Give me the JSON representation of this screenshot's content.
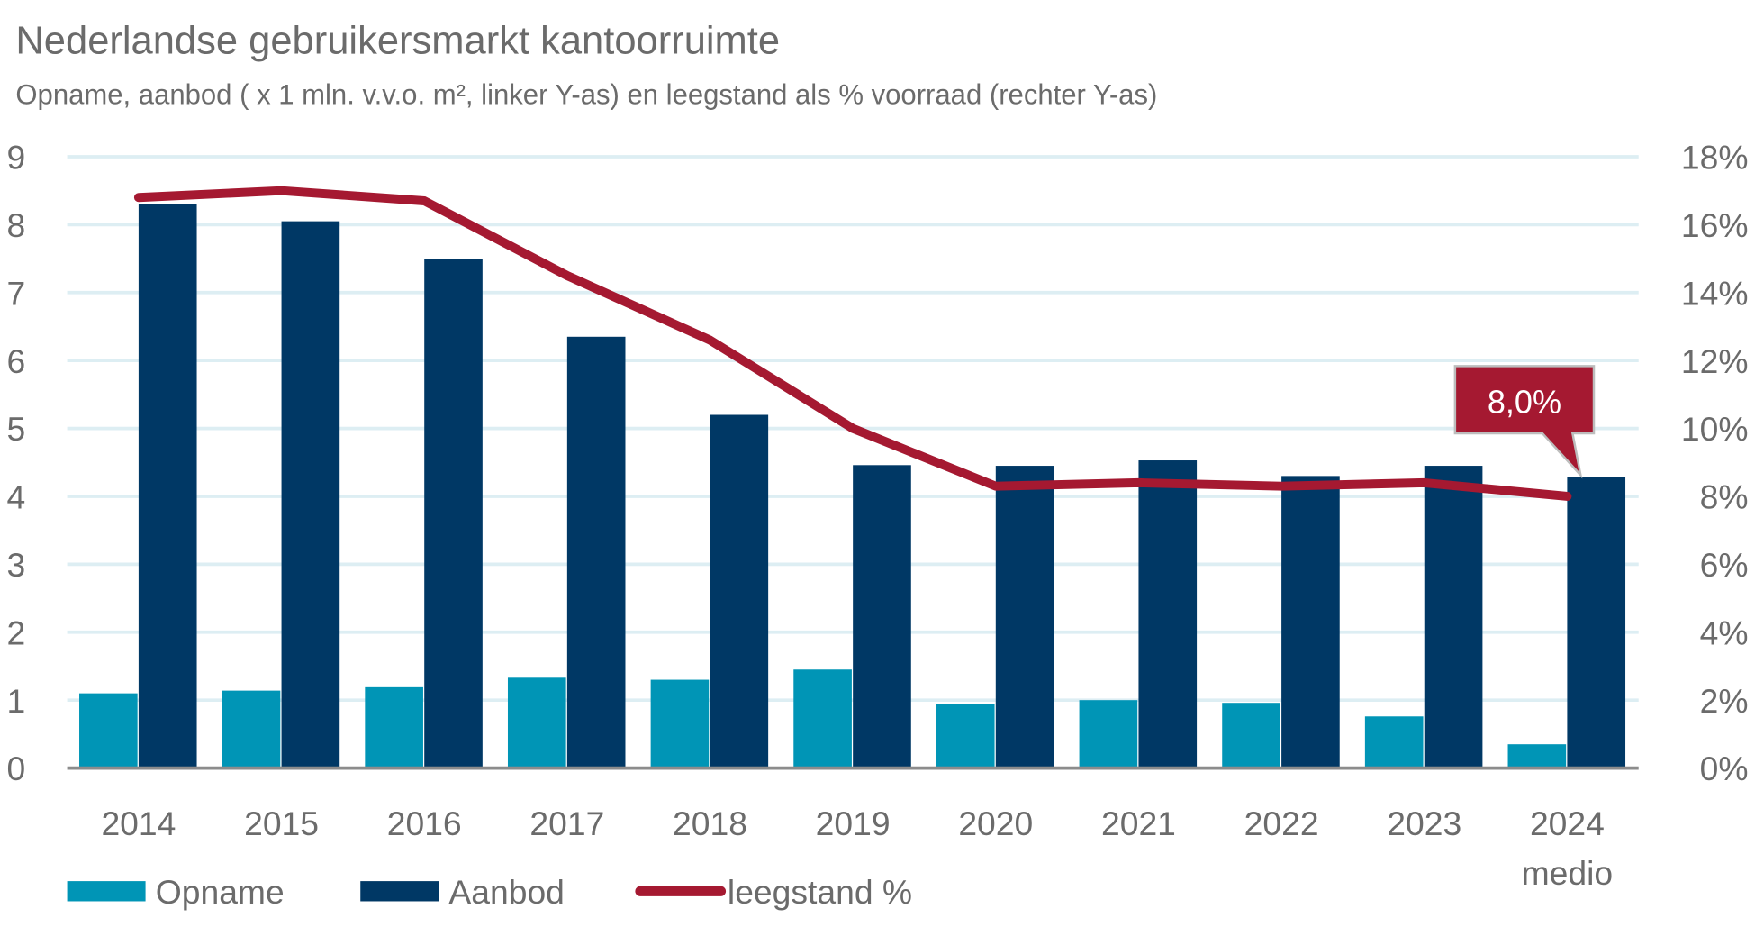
{
  "chart_data": {
    "type": "bar",
    "title": "Nederlandse gebruikersmarkt kantoorruimte",
    "subtitle": "Opname, aanbod ( x 1 mln. v.v.o. m², linker Y-as) en leegstand als % voorraad (rechter Y-as)",
    "categories": [
      "2014",
      "2015",
      "2016",
      "2017",
      "2018",
      "2019",
      "2020",
      "2021",
      "2022",
      "2023",
      "2024"
    ],
    "category_sublabels": [
      "",
      "",
      "",
      "",
      "",
      "",
      "",
      "",
      "",
      "",
      "medio"
    ],
    "series": [
      {
        "name": "Opname",
        "type": "bar",
        "axis": "left",
        "color": "#0095B6",
        "values": [
          1.1,
          1.14,
          1.19,
          1.33,
          1.3,
          1.45,
          0.94,
          1.0,
          0.96,
          0.76,
          0.35
        ]
      },
      {
        "name": "Aanbod",
        "type": "bar",
        "axis": "left",
        "color": "#003865",
        "values": [
          8.3,
          8.05,
          7.5,
          6.35,
          5.2,
          4.46,
          4.45,
          4.53,
          4.3,
          4.45,
          4.28
        ]
      },
      {
        "name": "leegstand %",
        "type": "line",
        "axis": "right",
        "color": "#A51931",
        "values": [
          16.8,
          17.0,
          16.7,
          14.5,
          12.6,
          10.0,
          8.3,
          8.4,
          8.3,
          8.4,
          8.0
        ]
      }
    ],
    "ylim_left": [
      0,
      9
    ],
    "yticks_left": [
      "0",
      "1",
      "2",
      "3",
      "4",
      "5",
      "6",
      "7",
      "8",
      "9"
    ],
    "ylim_right": [
      0,
      18
    ],
    "yticks_right": [
      "0%",
      "2%",
      "4%",
      "6%",
      "8%",
      "10%",
      "12%",
      "14%",
      "16%",
      "18%"
    ],
    "grid": true,
    "legend_placement": "bottom-left",
    "annotation": {
      "text": "8,0%",
      "category": "2024",
      "color": "#A51931"
    },
    "colors": {
      "grid": "#DDEEF3",
      "axis": "#8c8c8c",
      "text": "#6b6b6b"
    }
  }
}
